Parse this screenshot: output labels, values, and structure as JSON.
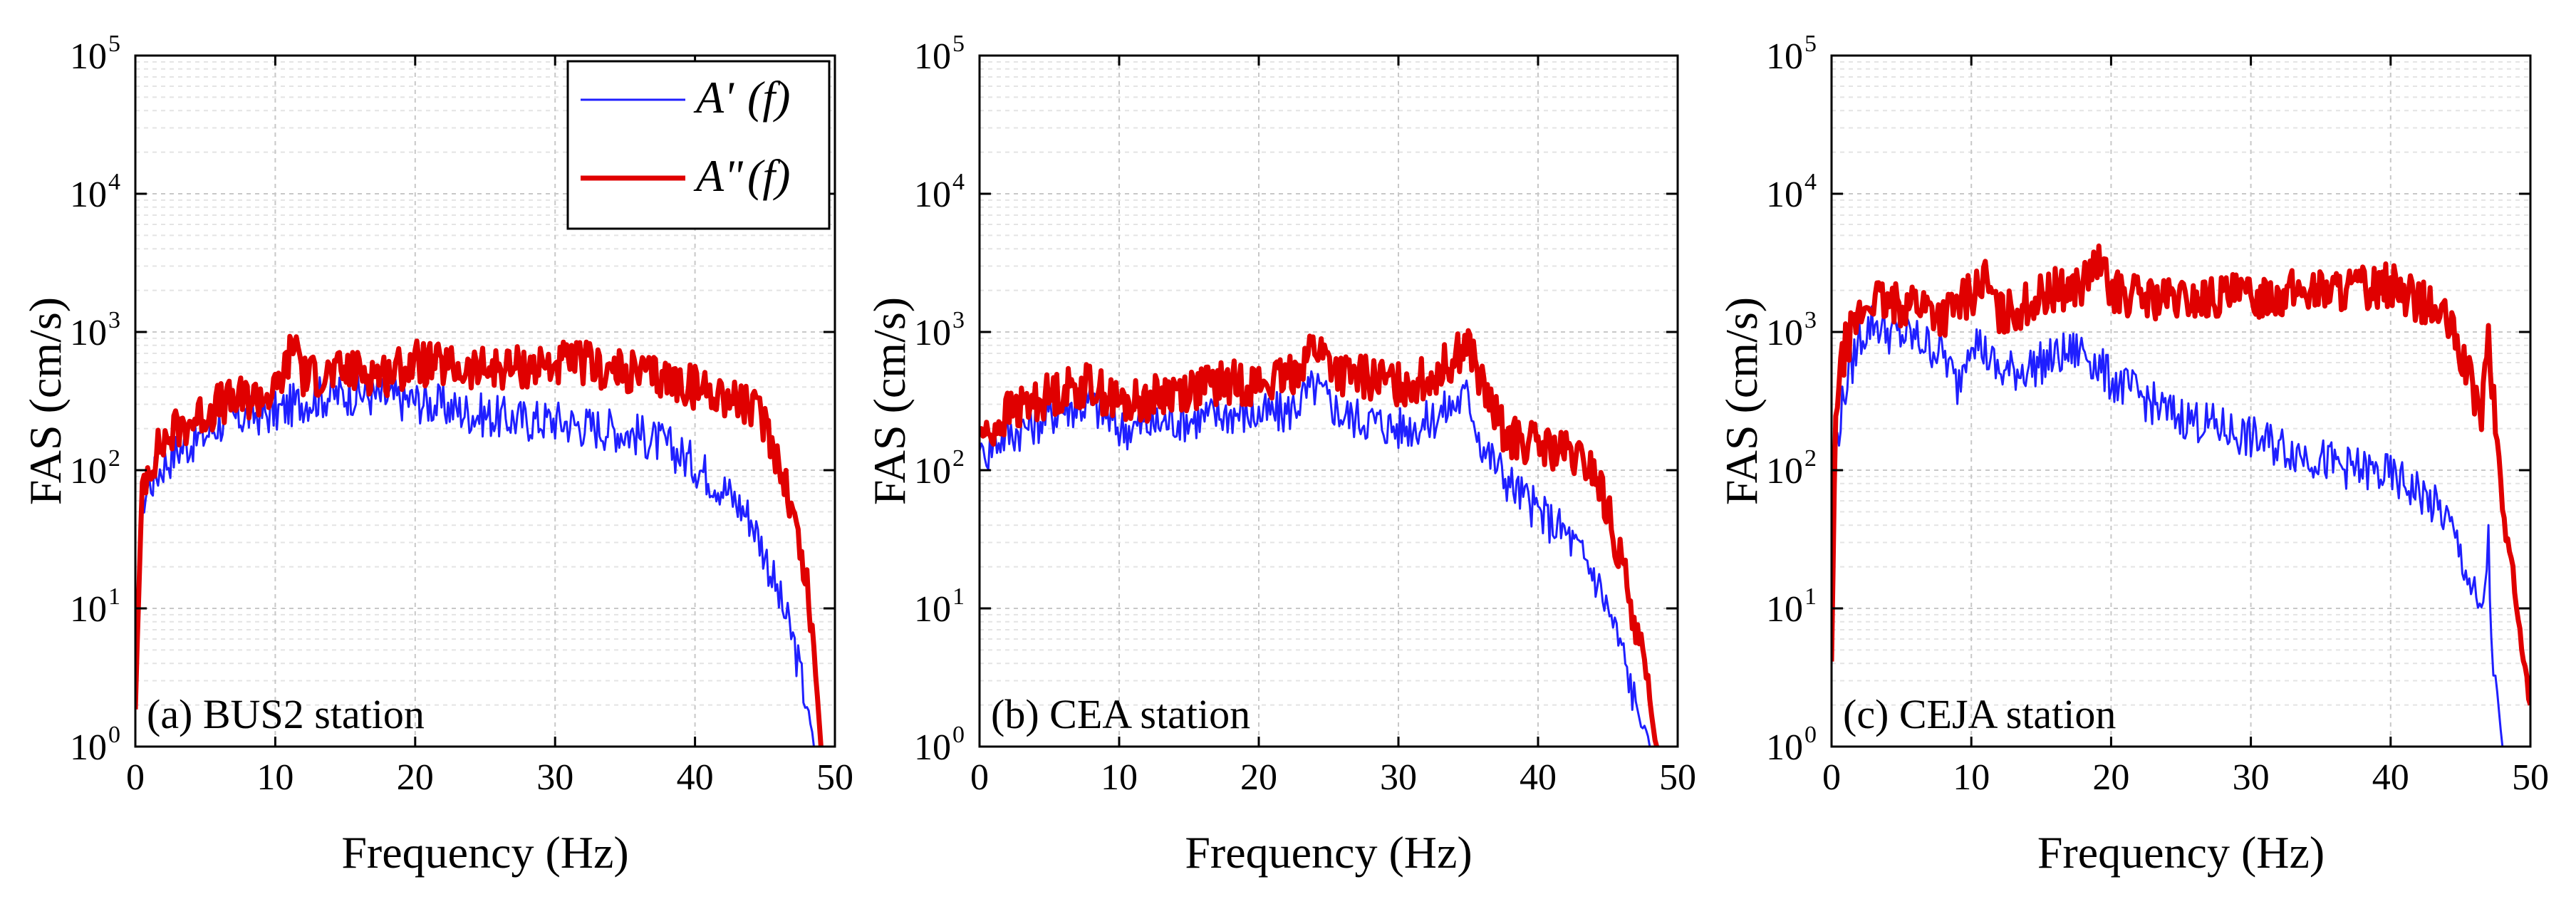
{
  "chart_data": [
    {
      "type": "line",
      "panel_label": "(a) BUS2 station",
      "xlabel": "Frequency (Hz)",
      "ylabel": "FAS (cm/s)",
      "yscale": "log",
      "xlim": [
        0,
        50
      ],
      "ylim_exponents": [
        0,
        5
      ],
      "x_ticks": [
        "0",
        "10",
        "20",
        "30",
        "40",
        "50"
      ],
      "y_tick_base": "10",
      "y_tick_exponents": [
        "0",
        "1",
        "2",
        "3",
        "4",
        "5"
      ],
      "grid": true,
      "legend": {
        "position": "top-right",
        "entries": [
          {
            "series": "A1",
            "name_main": "A'",
            "name_arg": "(f)"
          },
          {
            "series": "A2",
            "name_main": "A\"",
            "name_arg": "(f)"
          }
        ]
      },
      "series": [
        {
          "name": "A'(f)",
          "color": "#1f1fff",
          "x": [
            0,
            0.5,
            1,
            2,
            3,
            4,
            5,
            6,
            8,
            10,
            12,
            14,
            16,
            18,
            20,
            22,
            24,
            26,
            28,
            30,
            32,
            34,
            36,
            38,
            40,
            42,
            44,
            45,
            46,
            47,
            48,
            48.5
          ],
          "y": [
            2,
            60,
            80,
            110,
            140,
            160,
            180,
            220,
            250,
            260,
            320,
            350,
            360,
            330,
            320,
            290,
            260,
            240,
            230,
            230,
            210,
            200,
            180,
            150,
            110,
            75,
            45,
            25,
            12,
            6,
            2,
            1
          ]
        },
        {
          "name": "A\"(f)",
          "color": "#e00000",
          "x": [
            0,
            0.5,
            1,
            2,
            3,
            4,
            5,
            6,
            8,
            10,
            11.5,
            12,
            14,
            16,
            18,
            20,
            22,
            24,
            26,
            28,
            30,
            32,
            34,
            36,
            38,
            40,
            42,
            44,
            45,
            46,
            47,
            48,
            48.5,
            49
          ],
          "y": [
            2,
            80,
            110,
            160,
            200,
            230,
            260,
            300,
            330,
            360,
            900,
            480,
            500,
            520,
            500,
            600,
            560,
            520,
            550,
            560,
            580,
            600,
            520,
            500,
            460,
            400,
            360,
            280,
            220,
            120,
            50,
            15,
            5,
            1
          ]
        }
      ]
    },
    {
      "type": "line",
      "panel_label": "(b) CEA station",
      "xlabel": "Frequency (Hz)",
      "ylabel": "FAS (cm/s)",
      "yscale": "log",
      "xlim": [
        0,
        50
      ],
      "ylim_exponents": [
        0,
        5
      ],
      "x_ticks": [
        "0",
        "10",
        "20",
        "30",
        "40",
        "50"
      ],
      "y_tick_base": "10",
      "y_tick_exponents": [
        "0",
        "1",
        "2",
        "3",
        "4",
        "5"
      ],
      "grid": true,
      "series": [
        {
          "name": "A'(f)",
          "color": "#1f1fff",
          "x": [
            0,
            0.5,
            1,
            2,
            3,
            4,
            6,
            8,
            10,
            12,
            14,
            16,
            18,
            20,
            22,
            24,
            26,
            28,
            30,
            32,
            34,
            35,
            36,
            38,
            40,
            42,
            44,
            45,
            46,
            47,
            48
          ],
          "y": [
            150,
            130,
            160,
            180,
            200,
            220,
            280,
            300,
            200,
            210,
            230,
            240,
            260,
            250,
            260,
            400,
            250,
            230,
            200,
            220,
            300,
            350,
            150,
            80,
            50,
            35,
            18,
            10,
            5,
            2,
            1
          ]
        },
        {
          "name": "A\"(f)",
          "color": "#e00000",
          "x": [
            0,
            0.5,
            1,
            2,
            3,
            4,
            6,
            8,
            10,
            12,
            14,
            16,
            18,
            20,
            22,
            24,
            26,
            28,
            30,
            32,
            34,
            35,
            36,
            37,
            38,
            40,
            42,
            44,
            45,
            46,
            47,
            48,
            48.5
          ],
          "y": [
            200,
            170,
            200,
            260,
            280,
            320,
            380,
            420,
            300,
            320,
            380,
            400,
            430,
            420,
            450,
            800,
            480,
            460,
            420,
            450,
            650,
            850,
            400,
            240,
            170,
            150,
            130,
            100,
            50,
            20,
            8,
            2,
            1
          ]
        }
      ]
    },
    {
      "type": "line",
      "panel_label": "(c) CEJA station",
      "xlabel": "Frequency (Hz)",
      "ylabel": "FAS (cm/s)",
      "yscale": "log",
      "xlim": [
        0,
        50
      ],
      "ylim_exponents": [
        0,
        5
      ],
      "x_ticks": [
        "0",
        "10",
        "20",
        "30",
        "40",
        "50"
      ],
      "y_tick_base": "10",
      "y_tick_exponents": [
        "0",
        "1",
        "2",
        "3",
        "4",
        "5"
      ],
      "grid": true,
      "series": [
        {
          "name": "A'(f)",
          "color": "#1f1fff",
          "x": [
            0,
            0.3,
            1,
            2,
            3,
            4,
            6,
            8,
            9,
            10,
            11,
            12,
            14,
            16,
            18,
            20,
            22,
            24,
            26,
            28,
            30,
            32,
            34,
            36,
            38,
            40,
            42,
            44,
            45,
            46,
            46.5,
            47,
            47.2,
            47.5,
            48
          ],
          "y": [
            4,
            150,
            400,
            900,
            1200,
            1000,
            900,
            700,
            400,
            1000,
            700,
            500,
            550,
            650,
            750,
            450,
            350,
            260,
            230,
            200,
            170,
            150,
            130,
            110,
            100,
            90,
            70,
            45,
            25,
            12,
            8,
            30,
            6,
            3,
            1
          ]
        },
        {
          "name": "A\"(f)",
          "color": "#e00000",
          "x": [
            0,
            0.3,
            1,
            2,
            3,
            4,
            6,
            8,
            10,
            11,
            12,
            14,
            16,
            18,
            19,
            20,
            22,
            24,
            26,
            28,
            30,
            32,
            34,
            36,
            38,
            40,
            42,
            44,
            45,
            46,
            46.5,
            47,
            47.5,
            48,
            49,
            50
          ],
          "y": [
            4,
            300,
            800,
            1300,
            1800,
            1500,
            1700,
            1300,
            1900,
            2400,
            1300,
            1600,
            2000,
            2200,
            3200,
            2000,
            1800,
            1700,
            1700,
            1800,
            1800,
            1900,
            2000,
            2000,
            2100,
            2200,
            1700,
            1200,
            700,
            350,
            250,
            900,
            200,
            60,
            10,
            2
          ]
        }
      ]
    }
  ]
}
